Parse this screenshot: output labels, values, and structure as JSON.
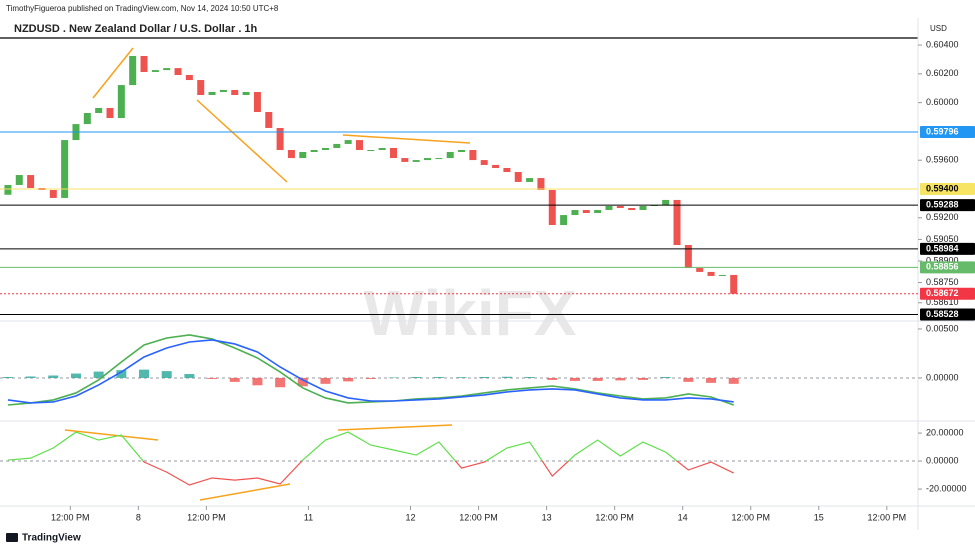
{
  "header": {
    "publisher": "TimothyFigueroa published on TradingView.com, Nov 14, 2024 10:50 UTC+8"
  },
  "footer": {
    "brand": "TradingView"
  },
  "watermark": "WikiFX",
  "chart_data": [
    {
      "type": "candlestick",
      "title": "NZDUSD . New Zealand Dollar / U.S. Dollar . 1h",
      "currency": "USD",
      "xlim": [
        -1.4,
        160.5
      ],
      "x": [
        0,
        2,
        4,
        6,
        8,
        10,
        12,
        14,
        16,
        18,
        20,
        22,
        24,
        26,
        28,
        30,
        32,
        34,
        36,
        38,
        40,
        42,
        44,
        46,
        48,
        50,
        52,
        54,
        56,
        58,
        60,
        62,
        64,
        66,
        68,
        70,
        72,
        74,
        76,
        78,
        80,
        82,
        84,
        86,
        88,
        90,
        92,
        94,
        96,
        98,
        100,
        102,
        104,
        106,
        108,
        110,
        112,
        114,
        116,
        118,
        120,
        122,
        124,
        126,
        128
      ],
      "open": [
        0.5936,
        0.59428,
        0.59497,
        0.59407,
        0.59393,
        0.59338,
        0.5974,
        0.59851,
        0.59928,
        0.59963,
        0.59893,
        0.60122,
        0.60324,
        0.60213,
        0.60226,
        0.6024,
        0.60192,
        0.60157,
        0.60053,
        0.60074,
        0.60088,
        0.60053,
        0.60074,
        0.59935,
        0.59824,
        0.59671,
        0.59615,
        0.59657,
        0.59671,
        0.59685,
        0.59713,
        0.5974,
        0.59671,
        0.59671,
        0.59685,
        0.59615,
        0.59588,
        0.59601,
        0.59615,
        0.59615,
        0.59657,
        0.59671,
        0.59601,
        0.59567,
        0.59546,
        0.59518,
        0.59449,
        0.59476,
        0.59393,
        0.5915,
        0.59219,
        0.59254,
        0.59233,
        0.59254,
        0.59282,
        0.59268,
        0.59254,
        0.59282,
        0.59289,
        0.59324,
        0.59011,
        0.58851,
        0.58824,
        0.58796,
        0.58803
      ],
      "close": [
        0.59428,
        0.59497,
        0.59407,
        0.59393,
        0.59338,
        0.5974,
        0.59851,
        0.59928,
        0.59963,
        0.59893,
        0.60122,
        0.60324,
        0.60213,
        0.60226,
        0.6024,
        0.60192,
        0.60157,
        0.60053,
        0.60074,
        0.60088,
        0.60053,
        0.60074,
        0.59935,
        0.59824,
        0.59671,
        0.59615,
        0.59657,
        0.59671,
        0.59685,
        0.59713,
        0.5974,
        0.59671,
        0.59671,
        0.59685,
        0.59615,
        0.59588,
        0.59601,
        0.59615,
        0.59615,
        0.59657,
        0.59671,
        0.59601,
        0.59567,
        0.59546,
        0.59518,
        0.59449,
        0.59476,
        0.59393,
        0.5915,
        0.59219,
        0.59254,
        0.59233,
        0.59254,
        0.59282,
        0.59268,
        0.59254,
        0.59282,
        0.59289,
        0.59324,
        0.59011,
        0.58851,
        0.58824,
        0.58796,
        0.58803,
        0.58672
      ],
      "up_color": "#4caf50",
      "down_color": "#ef5350",
      "ylim": [
        0.5849,
        0.60449
      ],
      "yticks": [
        {
          "value": 0.604,
          "label": "0.60400"
        },
        {
          "value": 0.602,
          "label": "0.60200"
        },
        {
          "value": 0.6,
          "label": "0.60000"
        },
        {
          "value": 0.596,
          "label": "0.59600"
        },
        {
          "value": 0.592,
          "label": "0.59200"
        },
        {
          "value": 0.5905,
          "label": "0.59050"
        },
        {
          "value": 0.589,
          "label": "0.58900"
        },
        {
          "value": 0.5875,
          "label": "0.58750"
        },
        {
          "value": 0.5861,
          "label": "0.58610"
        }
      ],
      "levels": [
        {
          "value": 0.59796,
          "label": "0.59796",
          "color": "#2196f3"
        },
        {
          "value": 0.594,
          "label": "0.59400",
          "color": "#f7e463"
        },
        {
          "value": 0.59288,
          "label": "0.59288",
          "color": "#000000"
        },
        {
          "value": 0.58984,
          "label": "0.58984",
          "color": "#000000"
        },
        {
          "value": 0.58856,
          "label": "0.58856",
          "color": "#66bb6a"
        },
        {
          "value": 0.58672,
          "label": "0.58672",
          "color": "#f23645",
          "style": "dotted"
        },
        {
          "value": 0.58528,
          "label": "0.58528",
          "color": "#000000"
        }
      ]
    },
    {
      "type": "macd",
      "x": [
        0,
        4,
        8,
        12,
        16,
        20,
        24,
        28,
        32,
        36,
        40,
        44,
        48,
        52,
        56,
        60,
        64,
        68,
        72,
        76,
        80,
        84,
        88,
        92,
        96,
        100,
        104,
        108,
        112,
        116,
        120,
        124,
        128
      ],
      "series": [
        {
          "color": "#4caf50",
          "values": [
            -0.00276,
            -0.00255,
            -0.00224,
            -0.00153,
            -0.0002,
            0.00163,
            0.00337,
            0.00408,
            0.00439,
            0.00398,
            0.00306,
            0.00204,
            0.00061,
            -0.00102,
            -0.00204,
            -0.00255,
            -0.00245,
            -0.00235,
            -0.00214,
            -0.00204,
            -0.00184,
            -0.00153,
            -0.00122,
            -0.00102,
            -0.00082,
            -0.00112,
            -0.00153,
            -0.00184,
            -0.00214,
            -0.00204,
            -0.00163,
            -0.00194,
            -0.00276
          ]
        },
        {
          "color": "#2962ff",
          "values": [
            -0.00224,
            -0.00255,
            -0.00245,
            -0.00184,
            -0.00071,
            0.00061,
            0.00214,
            0.00306,
            0.00367,
            0.00388,
            0.00347,
            0.00265,
            0.00112,
            -0.0002,
            -0.00133,
            -0.00204,
            -0.00235,
            -0.00235,
            -0.00224,
            -0.00214,
            -0.00194,
            -0.00173,
            -0.00143,
            -0.00122,
            -0.00112,
            -0.00122,
            -0.00163,
            -0.00204,
            -0.00224,
            -0.00224,
            -0.00204,
            -0.00214,
            -0.00245
          ]
        }
      ],
      "histogram": {
        "up_color": "#26a69a",
        "down_color": "#ef5350",
        "values": [
          0.0001,
          0.00015,
          0.00025,
          0.00045,
          0.00065,
          0.0008,
          0.00085,
          0.0007,
          0.0004,
          -0.0001,
          -0.0004,
          -0.00075,
          -0.00095,
          -0.00085,
          -0.0006,
          -0.00035,
          -0.0001,
          5e-05,
          0.0001,
          0.0001,
          8e-05,
          0.0001,
          0.00012,
          0.0001,
          -0.0002,
          -0.0003,
          -0.0003,
          -0.00025,
          -0.0002,
          0.0001,
          -0.0004,
          -0.0005,
          -0.0006
        ]
      },
      "ylim": [
        -0.00429,
        0.00571
      ],
      "yticks": [
        {
          "value": 0.005,
          "label": "0.00500"
        },
        {
          "value": 0,
          "label": "0.00000"
        }
      ],
      "zero_line": true
    },
    {
      "type": "line",
      "x": [
        0,
        4,
        8,
        12,
        16,
        20,
        24,
        28,
        32,
        36,
        40,
        44,
        48,
        52,
        56,
        60,
        64,
        68,
        72,
        76,
        80,
        84,
        88,
        92,
        96,
        100,
        104,
        108,
        112,
        116,
        120,
        124,
        128
      ],
      "values": [
        0.7,
        2.1,
        9.3,
        20.7,
        15.0,
        18.6,
        -0.7,
        -7.9,
        -17.1,
        -12.1,
        -13.6,
        -12.1,
        -16.4,
        0.7,
        15.0,
        20.7,
        11.4,
        7.9,
        4.3,
        13.6,
        -5.0,
        -0.7,
        9.3,
        13.6,
        -10.7,
        4.3,
        15.0,
        3.6,
        13.6,
        6.4,
        -6.4,
        -0.7,
        -8.6
      ],
      "up_color": "#5ee04a",
      "down_color": "#ef5350",
      "ylim": [
        -31.4,
        27.9
      ],
      "yticks": [
        {
          "value": 20,
          "label": "20.00000"
        },
        {
          "value": 0,
          "label": "0.00000"
        },
        {
          "value": -20,
          "label": "-20.00000"
        }
      ],
      "zero_line": true,
      "xticks": [
        {
          "value": 11,
          "label": "12:00 PM"
        },
        {
          "value": 23,
          "label": "8"
        },
        {
          "value": 35,
          "label": "12:00 PM"
        },
        {
          "value": 53,
          "label": "11"
        },
        {
          "value": 71,
          "label": "12"
        },
        {
          "value": 83,
          "label": "12:00 PM"
        },
        {
          "value": 95,
          "label": "13"
        },
        {
          "value": 107,
          "label": "12:00 PM"
        },
        {
          "value": 119,
          "label": "14"
        },
        {
          "value": 131,
          "label": "12:00 PM"
        },
        {
          "value": 143,
          "label": "15"
        },
        {
          "value": 155,
          "label": "12:00 PM"
        }
      ]
    }
  ]
}
